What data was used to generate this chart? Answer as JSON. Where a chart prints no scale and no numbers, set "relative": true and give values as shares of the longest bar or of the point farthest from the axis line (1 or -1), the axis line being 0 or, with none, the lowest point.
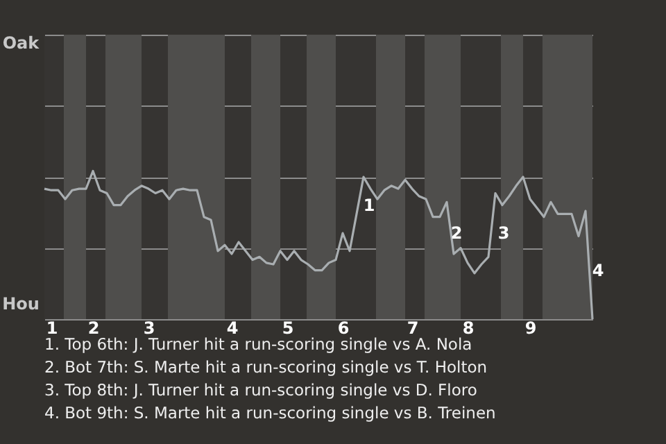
{
  "chart_data": {
    "type": "line",
    "relative": true,
    "categories": [
      null,
      "1",
      null,
      null,
      null,
      null,
      null,
      "2",
      null,
      null,
      null,
      null,
      null,
      null,
      null,
      "3",
      null,
      null,
      null,
      null,
      null,
      null,
      null,
      null,
      null,
      null,
      null,
      "4",
      null,
      null,
      null,
      null,
      null,
      null,
      null,
      "5",
      null,
      null,
      null,
      null,
      null,
      null,
      null,
      "6",
      null,
      null,
      null,
      null,
      null,
      null,
      null,
      null,
      null,
      "7",
      null,
      null,
      null,
      null,
      null,
      null,
      null,
      "8",
      null,
      null,
      null,
      null,
      null,
      null,
      null,
      null,
      "9",
      null,
      null,
      null,
      null,
      null,
      null,
      null,
      null,
      null
    ],
    "series": [
      {
        "color": "#a9aeb1",
        "values": [
          0.88,
          0.87,
          0.87,
          0.81,
          0.87,
          0.88,
          0.88,
          1,
          0.87,
          0.85,
          0.77,
          0.77,
          0.83,
          0.87,
          0.9,
          0.88,
          0.85,
          0.87,
          0.81,
          0.87,
          0.88,
          0.87,
          0.87,
          0.69,
          0.67,
          0.46,
          0.5,
          0.44,
          0.52,
          0.46,
          0.4,
          0.42,
          0.38,
          0.37,
          0.46,
          0.4,
          0.46,
          0.4,
          0.37,
          0.33,
          0.33,
          0.38,
          0.4,
          0.58,
          0.46,
          0.71,
          0.96,
          0.88,
          0.81,
          0.87,
          0.9,
          0.88,
          0.94,
          0.88,
          0.83,
          0.81,
          0.69,
          0.69,
          0.79,
          0.44,
          0.48,
          0.38,
          0.31,
          0.37,
          0.42,
          0.85,
          0.77,
          0.83,
          0.9,
          0.96,
          0.81,
          0.75,
          0.69,
          0.79,
          0.71,
          0.71,
          0.71,
          0.56,
          0.73,
          0
        ]
      }
    ],
    "ylim": [
      0,
      1.92
    ],
    "grid": "y",
    "marker": "none",
    "line_style": "solid",
    "annotations": [
      "Oak",
      "Hou",
      "1",
      "2",
      "3",
      "4",
      "1. Top 6th: J. Turner hit a run-scoring single vs A. Nola",
      "2. Bot 7th: S. Marte hit a run-scoring single vs T. Holton",
      "3. Top 8th: J. Turner hit a run-scoring single vs D. Floro",
      "4. Bot 9th: S. Marte hit a run-scoring single vs B. Treinen"
    ]
  }
}
